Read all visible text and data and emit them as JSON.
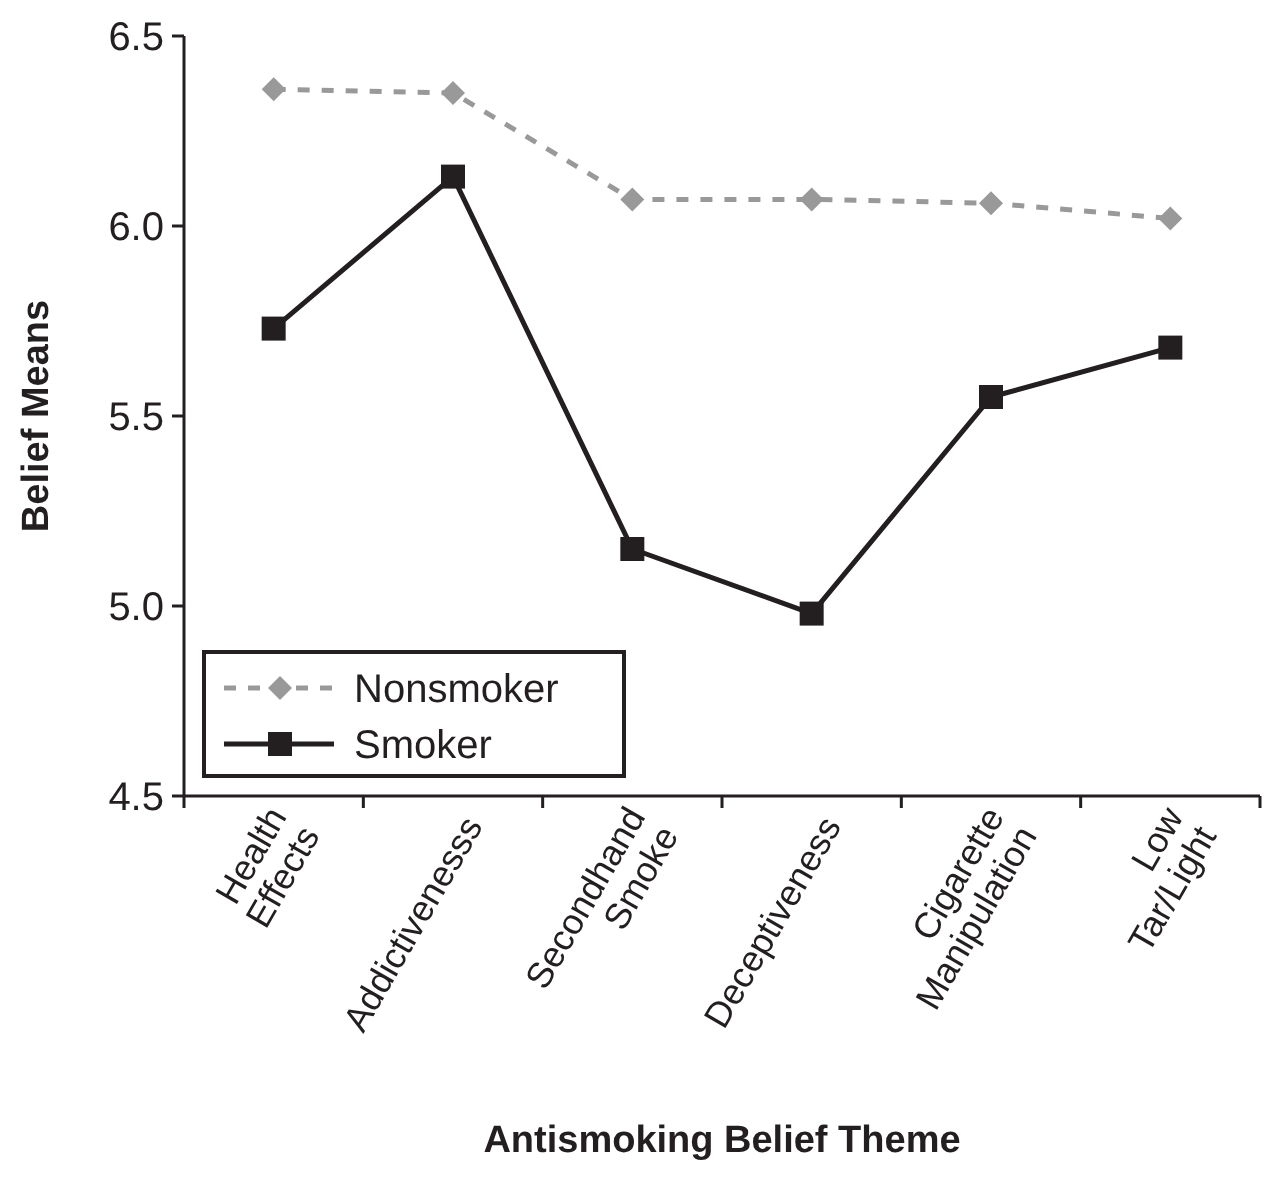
{
  "chart_data": {
    "type": "line",
    "xlabel": "Antismoking Belief Theme",
    "ylabel": "Belief Means",
    "categories": [
      "Health\nEffects",
      "Addictivenesss",
      "Secondhand\nSmoke",
      "Deceptiveness",
      "Cigarette\nManipulation",
      "Low\nTar/Light"
    ],
    "series": [
      {
        "name": "Nonsmoker",
        "color": "#999999",
        "marker": "diamond",
        "line_style": "dashed",
        "values": [
          6.36,
          6.35,
          6.07,
          6.07,
          6.06,
          6.02
        ]
      },
      {
        "name": "Smoker",
        "color": "#231f20",
        "marker": "square",
        "line_style": "solid",
        "values": [
          5.73,
          6.13,
          5.15,
          4.98,
          5.55,
          5.68
        ]
      }
    ],
    "ylim": [
      4.5,
      6.5
    ],
    "yticks": [
      {
        "value": 4.5,
        "label": "4.5"
      },
      {
        "value": 5,
        "label": "5.0"
      },
      {
        "value": 5.5,
        "label": "5.5"
      },
      {
        "value": 6,
        "label": "6.0"
      },
      {
        "value": 6.5,
        "label": "6.5"
      }
    ],
    "grid": false,
    "legend": "bottom left"
  }
}
